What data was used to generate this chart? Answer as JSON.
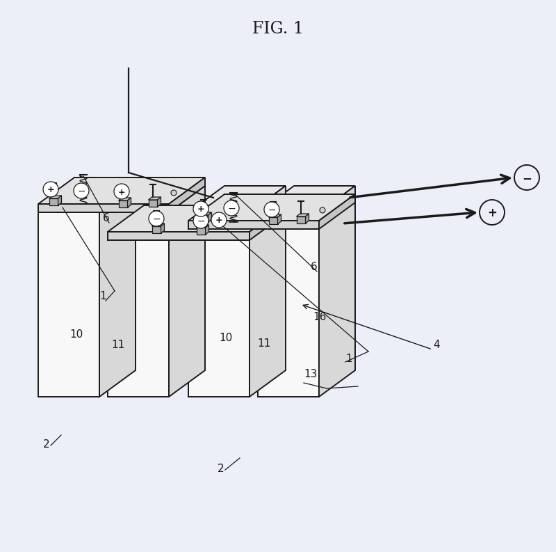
{
  "title": "FIG. 1",
  "bg_color": "#eceef8",
  "line_color": "#1a1a1a",
  "cell_front": "#f8f8f8",
  "cell_top": "#e8e8e8",
  "cell_side": "#d8d8d8",
  "plate_top": "#e2e2e2",
  "plate_front": "#d5d5d5",
  "plate_side": "#c5c5c5",
  "title_fontsize": 17,
  "label_fontsize": 11
}
